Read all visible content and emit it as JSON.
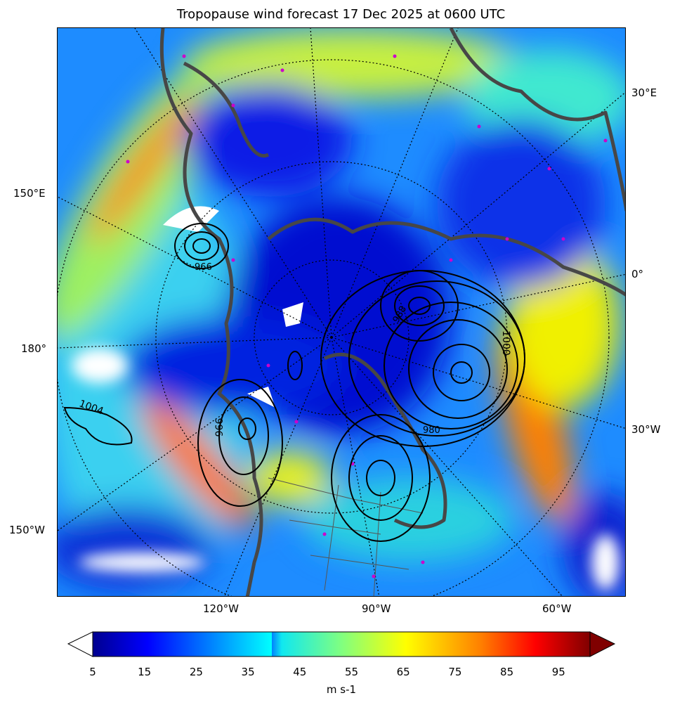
{
  "title": "Tropopause wind forecast 17 Dec 2025 at 0600 UTC",
  "map": {
    "projection": "north-polar-stereographic",
    "field": "tropopause wind speed",
    "contours": "sea level pressure (black lines)",
    "contour_labels": [
      "1004",
      "996",
      "1000",
      "980",
      "988",
      "996"
    ],
    "coastline_color": "#474747",
    "station_marker_color": "#cc00cc",
    "left_labels": [
      "150°E",
      "180°",
      "150°W"
    ],
    "right_labels": [
      "30°E",
      "0°",
      "30°W"
    ],
    "bottom_labels": [
      "120°W",
      "90°W",
      "60°W"
    ]
  },
  "colorbar": {
    "colormap": "jet",
    "extend": "both",
    "under_color": "#ffffff",
    "over_color": "#800000",
    "range": [
      5,
      100
    ],
    "ticks": [
      "5",
      "15",
      "25",
      "35",
      "45",
      "55",
      "65",
      "75",
      "85",
      "95"
    ],
    "label": "m s-1"
  }
}
